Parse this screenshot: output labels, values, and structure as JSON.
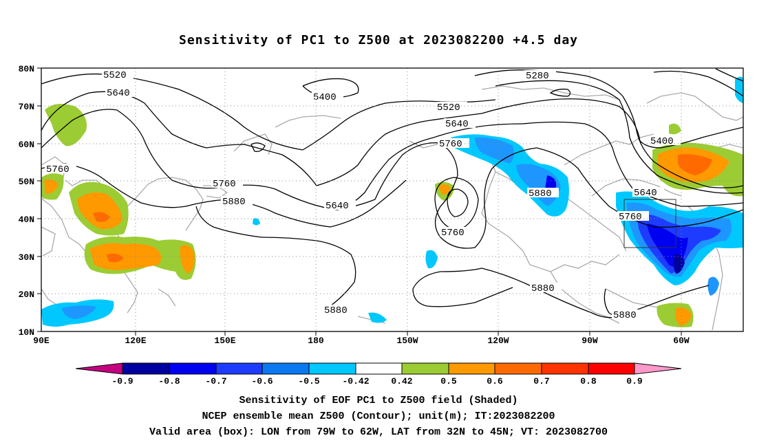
{
  "title": "Sensitivity of PC1 to Z500 at 2023082200 +4.5 day",
  "lat_labels": [
    "80N",
    "70N",
    "60N",
    "50N",
    "40N",
    "30N",
    "20N",
    "10N"
  ],
  "lon_labels": [
    "90E",
    "120E",
    "150E",
    "180",
    "150W",
    "120W",
    "90W",
    "60W"
  ],
  "contour_labels": [
    {
      "text": "5520"
    },
    {
      "text": "5640"
    },
    {
      "text": "5400"
    },
    {
      "text": "5280"
    },
    {
      "text": "5520"
    },
    {
      "text": "5640"
    },
    {
      "text": "5760"
    },
    {
      "text": "5400"
    },
    {
      "text": "5760"
    },
    {
      "text": "5880"
    },
    {
      "text": "5640"
    },
    {
      "text": "5880"
    },
    {
      "text": "5760"
    },
    {
      "text": "5640"
    },
    {
      "text": "5760"
    },
    {
      "text": "5880"
    },
    {
      "text": "5880"
    },
    {
      "text": "5880"
    }
  ],
  "colorbar": {
    "labels": [
      "-0.9",
      "-0.8",
      "-0.7",
      "-0.6",
      "-0.5",
      "-0.42",
      "0.42",
      "0.5",
      "0.6",
      "0.7",
      "0.8",
      "0.9"
    ],
    "colors": {
      "under": "#c4007f",
      "b1": "#0000a0",
      "b2": "#0000f0",
      "b3": "#1e3cff",
      "b4": "#0a78f0",
      "b5": "#1e96ff",
      "b6": "#00c8ff",
      "mid": "#ffffff",
      "r1": "#9ccc33",
      "r2": "#ff9900",
      "r3": "#ff6a00",
      "r4": "#ff3300",
      "r5": "#ff0000",
      "over": "#ff99cc"
    }
  },
  "captions": {
    "line1": "Sensitivity of EOF PC1 to Z500 field (Shaded)",
    "line2": "NCEP ensemble mean Z500 (Contour); unit(m); IT:2023082200",
    "line3": "Valid area (box): LON from 79W to 62W, LAT from 32N to 45N; VT: 2023082700"
  },
  "valid_box": {
    "lon_from": "79W",
    "lon_to": "62W",
    "lat_from": "32N",
    "lat_to": "45N"
  }
}
